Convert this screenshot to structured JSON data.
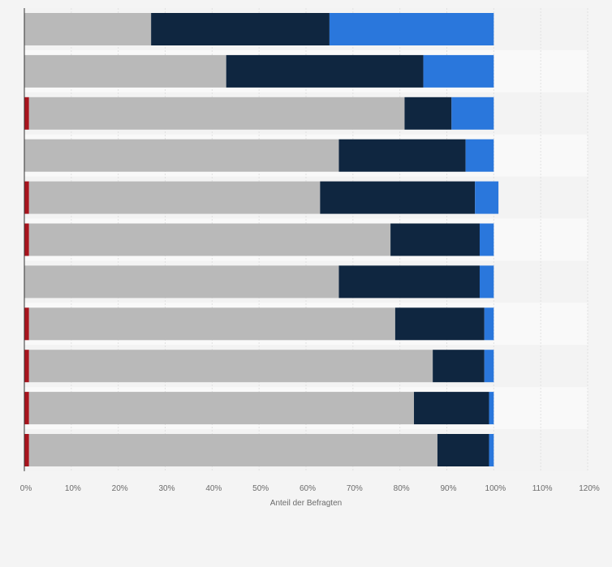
{
  "chart_data": {
    "type": "bar",
    "orientation": "horizontal",
    "stacked": true,
    "categories": [
      "",
      "",
      "",
      "",
      "",
      "",
      "",
      "",
      "",
      "",
      ""
    ],
    "series": [
      {
        "color": "#a8141d",
        "values": [
          0,
          0,
          1,
          0,
          1,
          1,
          0,
          1,
          1,
          1,
          1
        ]
      },
      {
        "color": "#b9b9b9",
        "values": [
          27,
          43,
          80,
          67,
          62,
          77,
          67,
          78,
          86,
          82,
          87
        ]
      },
      {
        "color": "#0f2640",
        "values": [
          38,
          42,
          10,
          27,
          33,
          19,
          30,
          19,
          11,
          16,
          11
        ]
      },
      {
        "color": "#2a77dc",
        "values": [
          35,
          15,
          9,
          6,
          5,
          3,
          3,
          2,
          2,
          1,
          1
        ]
      }
    ],
    "xlabel": "Anteil der Befragten",
    "xlim": [
      0,
      120
    ],
    "xticks": [
      0,
      10,
      20,
      30,
      40,
      50,
      60,
      70,
      80,
      90,
      100,
      110,
      120
    ],
    "xtick_labels": [
      "0%",
      "10%",
      "20%",
      "30%",
      "40%",
      "50%",
      "60%",
      "70%",
      "80%",
      "90%",
      "100%",
      "110%",
      "120%"
    ],
    "grid": true,
    "legend": "none"
  }
}
